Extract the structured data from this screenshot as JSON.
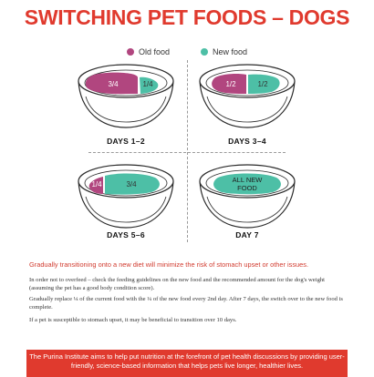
{
  "title": "SWITCHING PET FOODS – DOGS",
  "legend": {
    "old": "Old food",
    "new": "New food"
  },
  "colors": {
    "old_food": "#b1467f",
    "new_food": "#4dbfa6",
    "title": "#e03a2e"
  },
  "bowls": [
    {
      "day": "DAYS 1–2",
      "old_label": "3/4",
      "new_label": "1/4",
      "old_fraction": 0.75,
      "new_fraction": 0.25
    },
    {
      "day": "DAYS 3–4",
      "old_label": "1/2",
      "new_label": "1/2",
      "old_fraction": 0.5,
      "new_fraction": 0.5
    },
    {
      "day": "DAYS 5–6",
      "old_label": "1/4",
      "new_label": "3/4",
      "old_fraction": 0.25,
      "new_fraction": 0.75
    },
    {
      "day": "DAY 7",
      "full_label_line1": "ALL NEW",
      "full_label_line2": "FOOD",
      "old_fraction": 0,
      "new_fraction": 1
    }
  ],
  "lead": "Gradually transitioning onto a new diet will minimize the risk of stomach upset or other issues.",
  "paragraphs": [
    "In order not to overfeed – check the feeding guidelines on the new food and the recommended amount for the dog's weight (assuming the pet has a good body condition score).",
    "Gradually replace ¼ of the current food with the ¼ of the new food every 2nd day. After 7 days, the switch over to the new food is complete.",
    "If a pet is susceptible to stomach upset, it may be beneficial to transition over 10 days."
  ],
  "footer": "The Purina Institute aims to help put nutrition at the forefront of pet health discussions by providing user-friendly, science-based information that helps pets live longer, healthier lives."
}
